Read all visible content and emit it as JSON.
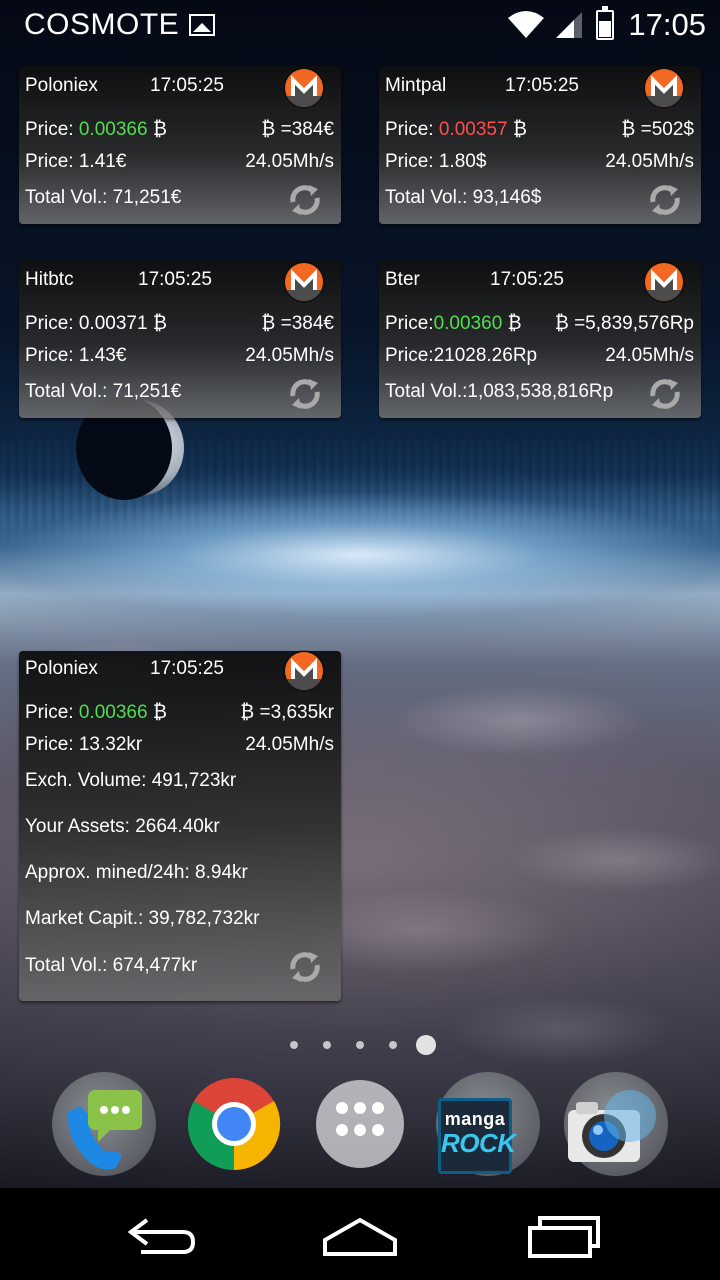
{
  "status_bar": {
    "carrier": "COSMOTE",
    "time": "17:05",
    "icons": [
      "image-notification-icon",
      "wifi-icon",
      "signal-icon",
      "battery-icon"
    ]
  },
  "widgets": [
    {
      "exchange": "Poloniex",
      "time": "17:05:25",
      "price_label": "Price:",
      "price_btc": "0.00366",
      "price_btc_color": "#4fde4f",
      "btc_rate": "=384€",
      "price2": "Price: 1.41€",
      "hashrate": "24.05Mh/s",
      "total_vol": "Total Vol.: 71,251€"
    },
    {
      "exchange": "Mintpal",
      "time": "17:05:25",
      "price_label": "Price:",
      "price_btc": "0.00357",
      "price_btc_color": "#ff4d4d",
      "btc_rate": "=502$",
      "price2": "Price: 1.80$",
      "hashrate": "24.05Mh/s",
      "total_vol": "Total Vol.: 93,146$"
    },
    {
      "exchange": "Hitbtc",
      "time": "17:05:25",
      "price_label": "Price:",
      "price_btc": "0.00371",
      "price_btc_color": "#ffffff",
      "btc_rate": "=384€",
      "price2": "Price: 1.43€",
      "hashrate": "24.05Mh/s",
      "total_vol": "Total Vol.: 71,251€"
    },
    {
      "exchange": "Bter",
      "time": "17:05:25",
      "price_label": "Price:",
      "price_btc": "0.00360",
      "price_btc_color": "#4fde4f",
      "btc_rate": "=5,839,576Rp",
      "price2": "Price:21028.26Rp",
      "hashrate": "24.05Mh/s",
      "total_vol": "Total Vol.:1,083,538,816Rp"
    }
  ],
  "big_widget": {
    "exchange": "Poloniex",
    "time": "17:05:25",
    "price_label": "Price:",
    "price_btc": "0.00366",
    "price_btc_color": "#4fde4f",
    "btc_rate": "=3,635kr",
    "price2": "Price: 13.32kr",
    "hashrate": "24.05Mh/s",
    "exch_volume": "Exch. Volume:  491,723kr",
    "assets": "Your Assets:  2664.40kr",
    "mined": "Approx. mined/24h: 8.94kr",
    "market_cap": "Market Capit.: 39,782,732kr",
    "total_vol": "Total Vol.: 674,477kr"
  },
  "btc_symbol": "₿",
  "page_indicator": {
    "count": 5,
    "active": 5
  },
  "dock": [
    {
      "name": "Messaging"
    },
    {
      "name": "Chrome"
    },
    {
      "name": "Apps"
    },
    {
      "name": "Manga Rock",
      "label_top": "manga",
      "label_bottom": "ROCK"
    },
    {
      "name": "Camera"
    }
  ],
  "colors": {
    "monero_orange": "#f26822",
    "price_up": "#4fde4f",
    "price_down": "#ff4d4d"
  }
}
